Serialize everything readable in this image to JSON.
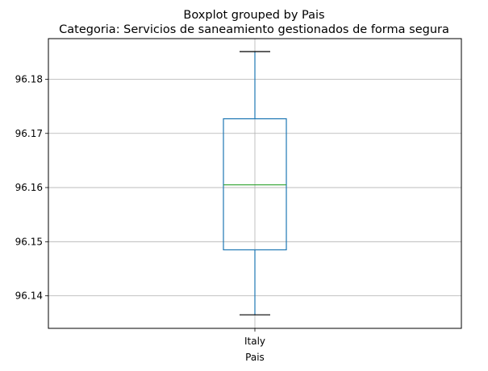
{
  "chart_data": {
    "type": "boxplot",
    "title": "Boxplot grouped by Pais",
    "subtitle": "Categoria: Servicios de saneamiento gestionados de forma segura",
    "xlabel": "Pais",
    "ylabel": "",
    "categories": [
      "Italy"
    ],
    "boxes": [
      {
        "category": "Italy",
        "whisker_low": 96.1365,
        "q1": 96.1485,
        "median": 96.1605,
        "q3": 96.1727,
        "whisker_high": 96.1851
      }
    ],
    "ylim": [
      96.134,
      96.1875
    ],
    "yticks": [
      96.14,
      96.15,
      96.16,
      96.17,
      96.18
    ],
    "ytick_labels": [
      "96.14",
      "96.15",
      "96.16",
      "96.17",
      "96.18"
    ],
    "grid": true,
    "colors": {
      "box": "#1f77b4",
      "median": "#2ca02c",
      "whisker": "#1f77b4",
      "cap": "#000000",
      "grid": "#b0b0b0"
    }
  }
}
